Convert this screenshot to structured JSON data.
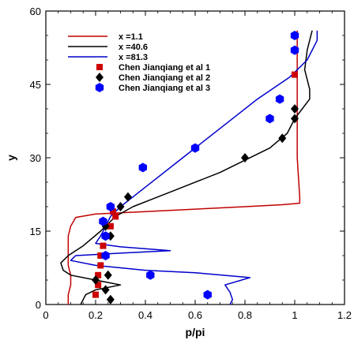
{
  "chart_data": {
    "type": "line",
    "title": "",
    "xlabel": "p/pi",
    "ylabel": "y",
    "xlim": [
      0,
      1.2
    ],
    "ylim": [
      0,
      60
    ],
    "xticks": [
      0,
      0.2,
      0.4,
      0.6,
      0.8,
      1,
      1.2
    ],
    "yticks": [
      0,
      15,
      30,
      45,
      60
    ],
    "xtick_labels": [
      "0",
      "0.2",
      "0.4",
      "0.6",
      "0.8",
      "1",
      "1.2"
    ],
    "ytick_labels": [
      "0",
      "15",
      "30",
      "45",
      "60"
    ],
    "grid": false,
    "legend_position": "top-left",
    "series": [
      {
        "name": "x =1.1",
        "kind": "line",
        "color": "#c00000",
        "points": [
          [
            0.09,
            0
          ],
          [
            0.09,
            2
          ],
          [
            0.1,
            4
          ],
          [
            0.1,
            6
          ],
          [
            0.09,
            8
          ],
          [
            0.09,
            10
          ],
          [
            0.09,
            12
          ],
          [
            0.09,
            14
          ],
          [
            0.1,
            16
          ],
          [
            0.12,
            17.8
          ],
          [
            0.2,
            18.5
          ],
          [
            0.4,
            19
          ],
          [
            0.6,
            19.5
          ],
          [
            0.8,
            20
          ],
          [
            0.95,
            20.4
          ],
          [
            1.02,
            20.7
          ],
          [
            1.02,
            22
          ],
          [
            1.01,
            30
          ],
          [
            1.01,
            40
          ],
          [
            1.01,
            48
          ],
          [
            1.01,
            56
          ]
        ]
      },
      {
        "name": "x =40.6",
        "kind": "line",
        "color": "#000000",
        "points": [
          [
            0.14,
            0
          ],
          [
            0.16,
            2
          ],
          [
            0.2,
            3
          ],
          [
            0.3,
            4
          ],
          [
            0.2,
            5
          ],
          [
            0.1,
            6
          ],
          [
            0.07,
            7
          ],
          [
            0.06,
            8.5
          ],
          [
            0.09,
            10
          ],
          [
            0.15,
            12
          ],
          [
            0.22,
            15
          ],
          [
            0.28,
            18
          ],
          [
            0.35,
            20
          ],
          [
            0.5,
            23
          ],
          [
            0.7,
            27
          ],
          [
            0.9,
            32
          ],
          [
            0.97,
            35
          ],
          [
            1.0,
            38
          ],
          [
            1.03,
            40
          ],
          [
            1.06,
            42
          ],
          [
            1.06,
            44
          ],
          [
            1.04,
            48
          ],
          [
            1.05,
            52
          ],
          [
            1.07,
            56
          ]
        ]
      },
      {
        "name": "x =81.3",
        "kind": "line",
        "color": "#0000cc",
        "points": [
          [
            0.74,
            0
          ],
          [
            0.75,
            1
          ],
          [
            0.74,
            2.5
          ],
          [
            0.72,
            4
          ],
          [
            0.82,
            5.5
          ],
          [
            0.6,
            6.5
          ],
          [
            0.4,
            7
          ],
          [
            0.3,
            7.5
          ],
          [
            0.2,
            8
          ],
          [
            0.1,
            9
          ],
          [
            0.12,
            10
          ],
          [
            0.3,
            10.5
          ],
          [
            0.5,
            11
          ],
          [
            0.3,
            11.8
          ],
          [
            0.2,
            12.5
          ],
          [
            0.22,
            14
          ],
          [
            0.24,
            16
          ],
          [
            0.26,
            18
          ],
          [
            0.3,
            20
          ],
          [
            0.4,
            24
          ],
          [
            0.55,
            30
          ],
          [
            0.7,
            36
          ],
          [
            0.85,
            42
          ],
          [
            0.98,
            46.5
          ],
          [
            1.05,
            50
          ],
          [
            1.09,
            54
          ],
          [
            1.09,
            56
          ]
        ]
      },
      {
        "name": "Chen Jianqiang et al 1",
        "kind": "marker",
        "marker": "square",
        "color": "#cc0000",
        "points": [
          [
            0.2,
            2
          ],
          [
            0.21,
            4
          ],
          [
            0.21,
            6
          ],
          [
            0.22,
            8
          ],
          [
            0.22,
            10
          ],
          [
            0.23,
            12
          ],
          [
            0.24,
            14
          ],
          [
            0.26,
            16
          ],
          [
            0.28,
            18
          ],
          [
            0.27,
            19
          ],
          [
            1.0,
            47
          ]
        ]
      },
      {
        "name": "Chen Jianqiang et al 2",
        "kind": "marker",
        "marker": "diamond",
        "color": "#000000",
        "points": [
          [
            0.26,
            1
          ],
          [
            0.24,
            3
          ],
          [
            0.2,
            5
          ],
          [
            0.25,
            6
          ],
          [
            0.24,
            10
          ],
          [
            0.26,
            14
          ],
          [
            0.24,
            16
          ],
          [
            0.3,
            20
          ],
          [
            0.33,
            22
          ],
          [
            0.8,
            30
          ],
          [
            0.95,
            34
          ],
          [
            1.0,
            38
          ],
          [
            1.0,
            40
          ]
        ]
      },
      {
        "name": "Chen Jianqiang et al 3",
        "kind": "marker",
        "marker": "hexagon",
        "color": "#0000ff",
        "points": [
          [
            0.65,
            2
          ],
          [
            0.42,
            6
          ],
          [
            0.24,
            10
          ],
          [
            0.24,
            14
          ],
          [
            0.23,
            17
          ],
          [
            0.26,
            20
          ],
          [
            0.39,
            28
          ],
          [
            0.6,
            32
          ],
          [
            0.9,
            38
          ],
          [
            0.94,
            42
          ],
          [
            1.0,
            52
          ],
          [
            1.0,
            55
          ]
        ]
      }
    ]
  }
}
